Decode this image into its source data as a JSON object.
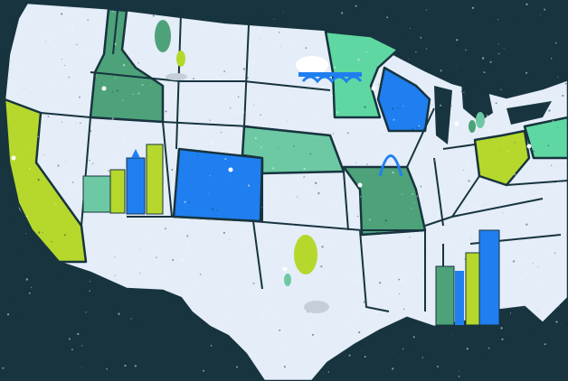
{
  "map": {
    "colors": {
      "ocean": "#17343f",
      "land": "#e4edf8",
      "border": "#17343f",
      "lime": "#b6d82c",
      "green": "#4ea27a",
      "blue": "#1f7ff0",
      "teal": "#6cc9a3",
      "mint": "#5fd7a2"
    },
    "highlighted_states": [
      {
        "name": "california",
        "color": "lime"
      },
      {
        "name": "idaho",
        "color": "green"
      },
      {
        "name": "colorado",
        "color": "blue"
      },
      {
        "name": "nebraska",
        "color": "teal"
      },
      {
        "name": "missouri",
        "color": "green"
      },
      {
        "name": "minnesota",
        "color": "mint"
      },
      {
        "name": "wisconsin",
        "color": "blue"
      },
      {
        "name": "ohio",
        "color": "lime"
      },
      {
        "name": "pennsylvania",
        "color": "mint"
      }
    ],
    "landmarks": [
      "city-skyline-west",
      "city-skyline-south",
      "gateway-arch",
      "bridge",
      "trees"
    ]
  }
}
